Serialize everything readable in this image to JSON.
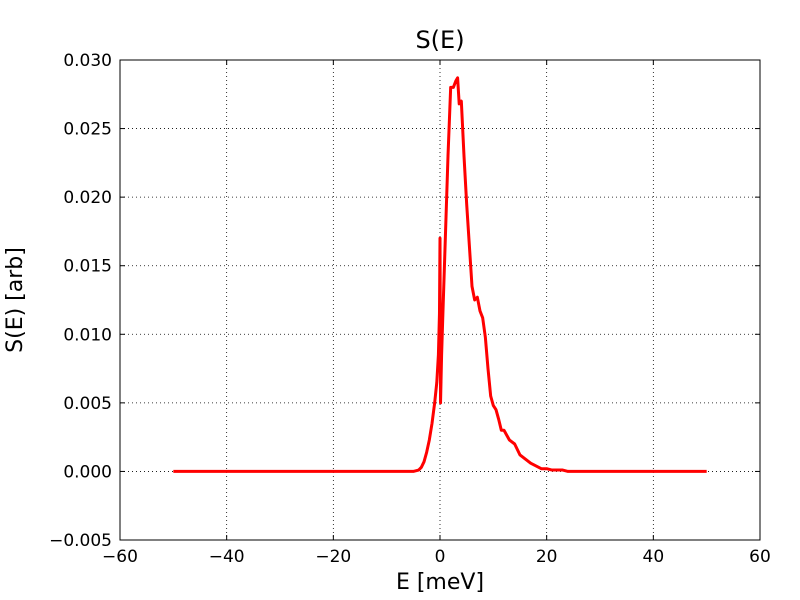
{
  "chart_data": {
    "type": "line",
    "title": "S(E)",
    "xlabel": "E [meV]",
    "ylabel": "S(E) [arb]",
    "xlim": [
      -60,
      60
    ],
    "ylim": [
      -0.005,
      0.03
    ],
    "xticks": [
      -60,
      -40,
      -20,
      0,
      20,
      40,
      60
    ],
    "xtick_labels": [
      "−60",
      "−40",
      "−20",
      "0",
      "20",
      "40",
      "60"
    ],
    "yticks": [
      -0.005,
      0.0,
      0.005,
      0.01,
      0.015,
      0.02,
      0.025,
      0.03
    ],
    "ytick_labels": [
      "−0.005",
      "0.000",
      "0.005",
      "0.010",
      "0.015",
      "0.020",
      "0.025",
      "0.030"
    ],
    "grid": true,
    "line_color": "#ff0000",
    "series": [
      {
        "x": [
          -50,
          -40,
          -30,
          -20,
          -10,
          -6,
          -5,
          -4,
          -3.5,
          -3,
          -2.5,
          -2,
          -1.5,
          -1,
          -0.6,
          -0.3,
          -0.1,
          0,
          0.1,
          0.3,
          0.5,
          1,
          1.5,
          2,
          2.5,
          3,
          3.3,
          3.6,
          4,
          4.5,
          5,
          5.5,
          6,
          6.5,
          7,
          7.5,
          8,
          8.5,
          9,
          9.5,
          10,
          10.5,
          11,
          11.5,
          12,
          13,
          14,
          15,
          16,
          17,
          18,
          19,
          20,
          21,
          22,
          23,
          24,
          25,
          27,
          30,
          35,
          40,
          45,
          50
        ],
        "y": [
          0.0,
          0.0,
          0.0,
          0.0,
          0.0,
          0.0,
          0.0,
          0.0001,
          0.0003,
          0.0007,
          0.0014,
          0.0023,
          0.0035,
          0.005,
          0.0065,
          0.0085,
          0.0115,
          0.017,
          0.005,
          0.0085,
          0.011,
          0.017,
          0.023,
          0.028,
          0.028,
          0.0285,
          0.0287,
          0.0268,
          0.027,
          0.023,
          0.0195,
          0.0165,
          0.0135,
          0.0125,
          0.0127,
          0.0117,
          0.0112,
          0.0098,
          0.0075,
          0.0055,
          0.0048,
          0.0045,
          0.0038,
          0.003,
          0.003,
          0.0023,
          0.002,
          0.0012,
          0.0009,
          0.0006,
          0.0004,
          0.0002,
          0.0002,
          0.0001,
          0.0001,
          0.0001,
          0.0,
          0.0,
          0.0,
          0.0,
          0.0,
          0.0,
          0.0,
          0.0
        ]
      }
    ]
  }
}
